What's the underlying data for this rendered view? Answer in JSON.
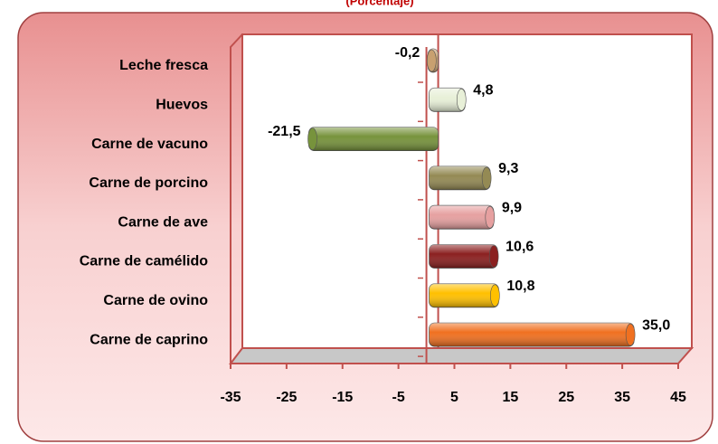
{
  "chart_data": {
    "type": "bar",
    "orientation": "horizontal",
    "subtitle": "(Porcentaje)",
    "categories": [
      "Leche fresca",
      "Huevos",
      "Carne de vacuno",
      "Carne de porcino",
      "Carne de ave",
      "Carne de camélido",
      "Carne de ovino",
      "Carne de caprino"
    ],
    "values": [
      -0.2,
      4.8,
      -21.5,
      9.3,
      9.9,
      10.6,
      10.8,
      35.0
    ],
    "value_labels": [
      "-0,2",
      "4,8",
      "-21,5",
      "9,3",
      "9,9",
      "10,6",
      "10,8",
      "35,0"
    ],
    "colors": [
      "#c8a070",
      "#e8f0d8",
      "#77933c",
      "#948a54",
      "#e6a0a0",
      "#8b2020",
      "#ffc000",
      "#f07020"
    ],
    "xlim": [
      -35,
      45
    ],
    "xticks": [
      -35,
      -25,
      -15,
      -5,
      5,
      15,
      25,
      35,
      45
    ]
  }
}
